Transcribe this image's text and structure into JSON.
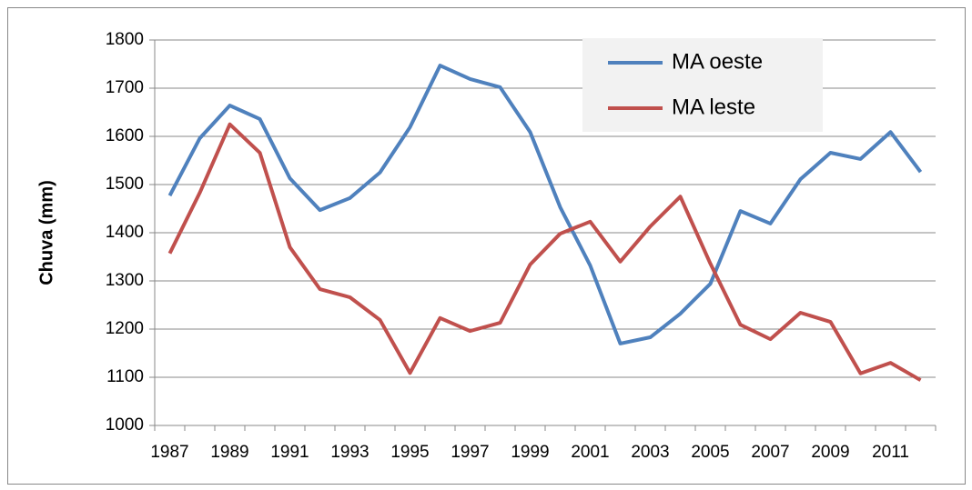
{
  "chart_data": {
    "type": "line",
    "ylabel": "Chuva (mm)",
    "categories": [
      "1987",
      null,
      "1989",
      null,
      "1991",
      null,
      "1993",
      null,
      "1995",
      null,
      "1997",
      null,
      "1999",
      null,
      "2001",
      null,
      "2003",
      null,
      "2005",
      null,
      "2007",
      null,
      "2009",
      null,
      "2011",
      null
    ],
    "series": [
      {
        "name": "MA oeste",
        "color": "#4f81bd",
        "values": [
          1477,
          1596,
          1664,
          1636,
          1513,
          1447,
          1472,
          1525,
          1619,
          1747,
          1719,
          1702,
          1609,
          1453,
          1332,
          1170,
          1183,
          1232,
          1294,
          1445,
          1419,
          1511,
          1566,
          1553,
          1609,
          1526
        ]
      },
      {
        "name": "MA leste",
        "color": "#c0504d",
        "values": [
          1357,
          1483,
          1625,
          1566,
          1370,
          1283,
          1266,
          1219,
          1109,
          1223,
          1196,
          1213,
          1334,
          1398,
          1423,
          1340,
          1413,
          1475,
          1336,
          1209,
          1179,
          1234,
          1215,
          1108,
          1130,
          1094
        ]
      }
    ],
    "ylim": [
      1000,
      1800
    ],
    "yticks": [
      1000,
      1100,
      1200,
      1300,
      1400,
      1500,
      1600,
      1700,
      1800
    ],
    "grid": true,
    "legend": "top-right"
  }
}
